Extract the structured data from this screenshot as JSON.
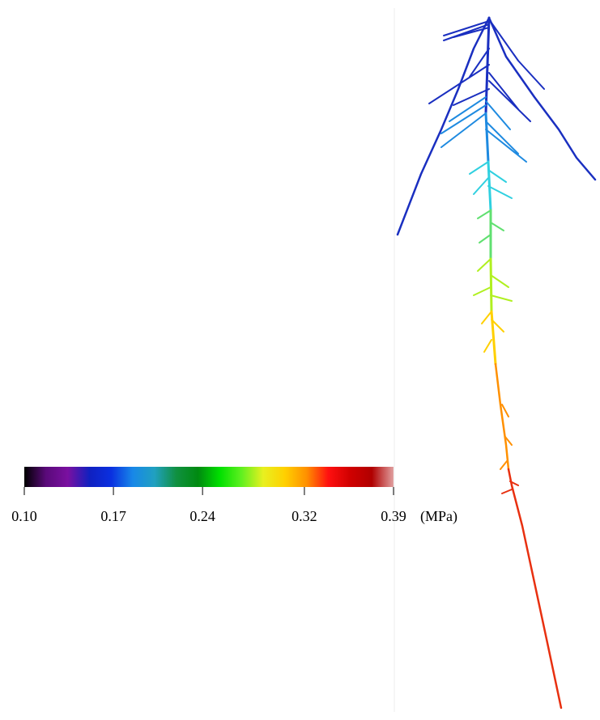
{
  "chart_data": {
    "type": "colorbar",
    "xlim": [
      0.1,
      0.39
    ],
    "xticks": [
      {
        "value": 0.1,
        "label": "0.10"
      },
      0.17,
      0.24,
      0.32,
      0.39
    ],
    "unit": "(MPa)",
    "colormap": [
      "#000000",
      "#5a0a7a",
      "#7a10a0",
      "#1020c0",
      "#0a30e0",
      "#1888e8",
      "#20a0c0",
      "#109040",
      "#008a10",
      "#00e000",
      "#60f020",
      "#e8f020",
      "#ffd000",
      "#ff9000",
      "#ff1010",
      "#d00000",
      "#b00000",
      "#e0a0a0"
    ]
  }
}
